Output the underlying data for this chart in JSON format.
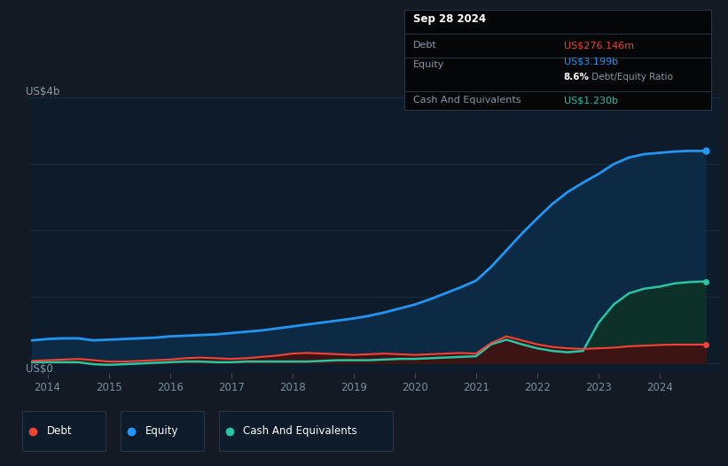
{
  "bg_color": "#131a24",
  "plot_bg_color": "#0d1b2a",
  "grid_color": "#1e2d40",
  "tooltip": {
    "date": "Sep 28 2024",
    "debt_label": "Debt",
    "debt_value": "US$276.146m",
    "equity_label": "Equity",
    "equity_value": "US$3.199b",
    "ratio_value": "8.6% Debt/Equity Ratio",
    "cash_label": "Cash And Equivalents",
    "cash_value": "US$1.230b"
  },
  "y_label_top": "US$4b",
  "y_label_bottom": "US$0",
  "x_ticks": [
    "2014",
    "2015",
    "2016",
    "2017",
    "2018",
    "2019",
    "2020",
    "2021",
    "2022",
    "2023",
    "2024"
  ],
  "equity_color": "#2196f3",
  "equity_fill": "#0d2a45",
  "debt_color": "#f44336",
  "debt_fill": "#3d1414",
  "cash_color": "#26c6a6",
  "cash_fill": "#0d3028",
  "legend_border": "#2a3545",
  "years": [
    2013.75,
    2014.0,
    2014.25,
    2014.5,
    2014.75,
    2015.0,
    2015.25,
    2015.5,
    2015.75,
    2016.0,
    2016.25,
    2016.5,
    2016.75,
    2017.0,
    2017.25,
    2017.5,
    2017.75,
    2018.0,
    2018.25,
    2018.5,
    2018.75,
    2019.0,
    2019.25,
    2019.5,
    2019.75,
    2020.0,
    2020.25,
    2020.5,
    2020.75,
    2021.0,
    2021.25,
    2021.5,
    2021.75,
    2022.0,
    2022.25,
    2022.5,
    2022.75,
    2023.0,
    2023.25,
    2023.5,
    2023.75,
    2024.0,
    2024.25,
    2024.5,
    2024.75
  ],
  "equity": [
    0.34,
    0.36,
    0.37,
    0.37,
    0.34,
    0.35,
    0.36,
    0.37,
    0.38,
    0.4,
    0.41,
    0.42,
    0.43,
    0.45,
    0.47,
    0.49,
    0.52,
    0.55,
    0.58,
    0.61,
    0.64,
    0.67,
    0.71,
    0.76,
    0.82,
    0.88,
    0.96,
    1.05,
    1.14,
    1.24,
    1.45,
    1.7,
    1.95,
    2.18,
    2.4,
    2.58,
    2.72,
    2.85,
    3.0,
    3.1,
    3.15,
    3.17,
    3.19,
    3.2,
    3.199
  ],
  "debt": [
    0.03,
    0.04,
    0.05,
    0.06,
    0.04,
    0.02,
    0.02,
    0.03,
    0.04,
    0.05,
    0.07,
    0.08,
    0.07,
    0.06,
    0.07,
    0.09,
    0.11,
    0.14,
    0.15,
    0.14,
    0.13,
    0.12,
    0.13,
    0.14,
    0.13,
    0.12,
    0.13,
    0.14,
    0.15,
    0.14,
    0.3,
    0.4,
    0.34,
    0.28,
    0.24,
    0.22,
    0.21,
    0.22,
    0.23,
    0.25,
    0.26,
    0.27,
    0.276,
    0.276,
    0.276
  ],
  "cash": [
    0.01,
    0.01,
    0.01,
    0.01,
    -0.02,
    -0.03,
    -0.02,
    -0.01,
    0.0,
    0.01,
    0.02,
    0.02,
    0.01,
    0.01,
    0.02,
    0.02,
    0.02,
    0.02,
    0.02,
    0.03,
    0.04,
    0.04,
    0.04,
    0.05,
    0.06,
    0.06,
    0.07,
    0.08,
    0.09,
    0.1,
    0.28,
    0.35,
    0.28,
    0.22,
    0.18,
    0.16,
    0.18,
    0.6,
    0.88,
    1.05,
    1.12,
    1.15,
    1.2,
    1.22,
    1.23
  ],
  "ylim_min": -0.15,
  "ylim_max": 4.0,
  "xlim_min": 2013.7,
  "xlim_max": 2025.0
}
